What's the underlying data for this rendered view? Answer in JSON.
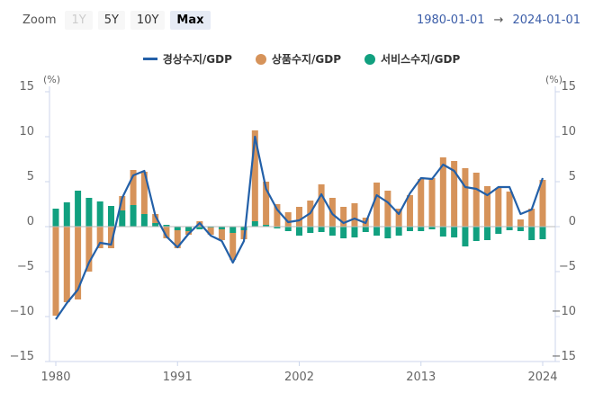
{
  "toolbar": {
    "zoom_label": "Zoom",
    "buttons": [
      {
        "label": "1Y",
        "state": "disabled"
      },
      {
        "label": "5Y",
        "state": "normal"
      },
      {
        "label": "10Y",
        "state": "normal"
      },
      {
        "label": "Max",
        "state": "active"
      }
    ],
    "range_from": "1980-01-01",
    "range_arrow": "→",
    "range_to": "2024-01-01"
  },
  "chart_data": {
    "type": "bar+line",
    "unit_left": "(%)",
    "unit_right": "(%)",
    "ylim": [
      -15,
      15
    ],
    "yticks": [
      15,
      10,
      5,
      0,
      -5,
      -10,
      -15
    ],
    "xlim": [
      1980,
      2024
    ],
    "xtick_labels": [
      "1980",
      "1991",
      "2002",
      "2013",
      "2024"
    ],
    "stacked": true,
    "grid": false,
    "legend_position": "top-center",
    "years": [
      1980,
      1981,
      1982,
      1983,
      1984,
      1985,
      1986,
      1987,
      1988,
      1989,
      1990,
      1991,
      1992,
      1993,
      1994,
      1995,
      1996,
      1997,
      1998,
      1999,
      2000,
      2001,
      2002,
      2003,
      2004,
      2005,
      2006,
      2007,
      2008,
      2009,
      2010,
      2011,
      2012,
      2013,
      2014,
      2015,
      2016,
      2017,
      2018,
      2019,
      2020,
      2021,
      2022,
      2023,
      2024
    ],
    "series": [
      {
        "name": "경상수지/GDP",
        "kind": "line",
        "color": "#2360a8",
        "values": [
          -10.3,
          -8.5,
          -7.0,
          -4.0,
          -1.8,
          -2.0,
          3.2,
          5.7,
          6.2,
          1.2,
          -1.1,
          -2.3,
          -0.8,
          0.4,
          -1.0,
          -1.6,
          -4.0,
          -1.6,
          10.0,
          4.2,
          1.9,
          0.5,
          0.7,
          1.5,
          3.6,
          1.4,
          0.4,
          0.9,
          0.4,
          3.5,
          2.7,
          1.4,
          3.7,
          5.4,
          5.3,
          6.9,
          6.2,
          4.4,
          4.2,
          3.5,
          4.4,
          4.4,
          1.4,
          1.9,
          5.4
        ]
      },
      {
        "name": "상품수지/GDP",
        "kind": "bar",
        "color": "#d6935a",
        "values": [
          -9.9,
          -8.4,
          -8.1,
          -5.0,
          -2.4,
          -2.4,
          1.6,
          3.9,
          4.7,
          1.0,
          -1.3,
          -2.0,
          -0.4,
          0.6,
          -0.8,
          -1.2,
          -3.0,
          -1.0,
          10.1,
          4.8,
          2.5,
          1.6,
          2.2,
          2.9,
          4.7,
          3.2,
          2.2,
          2.6,
          1.0,
          4.9,
          4.0,
          2.0,
          3.5,
          5.3,
          5.4,
          7.7,
          7.3,
          6.5,
          6.0,
          4.5,
          4.3,
          3.9,
          0.8,
          2.0,
          5.2
        ]
      },
      {
        "name": "서비스수지/GDP",
        "kind": "bar",
        "color": "#11a07f",
        "values": [
          2.0,
          2.7,
          4.0,
          3.2,
          2.8,
          2.3,
          1.8,
          2.4,
          1.4,
          0.4,
          0.2,
          -0.4,
          -0.5,
          -0.3,
          -0.1,
          -0.3,
          -0.7,
          -0.4,
          0.6,
          0.2,
          -0.2,
          -0.5,
          -1.0,
          -0.7,
          -0.6,
          -1.0,
          -1.3,
          -1.2,
          -0.6,
          -1.0,
          -1.3,
          -1.0,
          -0.5,
          -0.5,
          -0.3,
          -1.1,
          -1.2,
          -2.2,
          -1.6,
          -1.5,
          -0.8,
          -0.4,
          -0.5,
          -1.5,
          -1.4
        ]
      }
    ]
  }
}
